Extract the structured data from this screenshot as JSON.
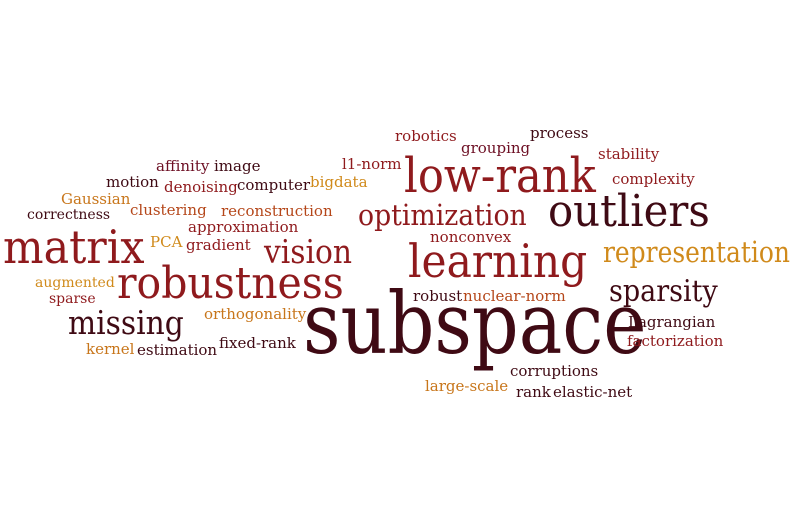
{
  "colors": {
    "dark_maroon": "#3f0a14",
    "maroon": "#6d0f24",
    "dark_red": "#8f1a1d",
    "red": "#b11f1f",
    "rust": "#b5471a",
    "orange": "#c8761b",
    "gold": "#d08a1b"
  },
  "words": {
    "robotics": "robotics",
    "process": "process",
    "grouping": "grouping",
    "stability": "stability",
    "affinity": "affinity",
    "image": "image",
    "l1norm": "l1-norm",
    "lowrank": "low-rank",
    "motion": "motion",
    "denoising": "denoising",
    "computer": "computer",
    "bigdata": "bigdata",
    "complexity": "complexity",
    "gaussian": "Gaussian",
    "clustering": "clustering",
    "reconstruction": "reconstruction",
    "correctness": "correctness",
    "optimization": "optimization",
    "outliers": "outliers",
    "approximation": "approximation",
    "nonconvex": "nonconvex",
    "matrix": "matrix",
    "pca": "PCA",
    "gradient": "gradient",
    "vision": "vision",
    "learning": "learning",
    "representation": "representation",
    "augmented": "augmented",
    "robustness": "robustness",
    "sparsity": "sparsity",
    "sparse": "sparse",
    "robust": "robust",
    "nuclearnorm": "nuclear-norm",
    "missing": "missing",
    "orthogonality": "orthogonality",
    "subspace": "subspace",
    "lagrangian": "Lagrangian",
    "kernel": "kernel",
    "estimation": "estimation",
    "fixedrank": "fixed-rank",
    "factorization": "factorization",
    "corruptions": "corruptions",
    "largescale": "large-scale",
    "rank": "rank",
    "elasticnet": "elastic-net"
  }
}
